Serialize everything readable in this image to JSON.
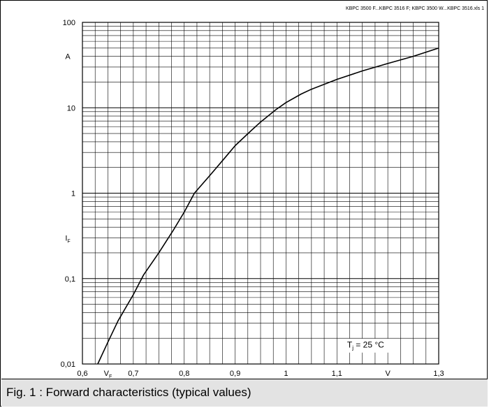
{
  "header_note": "KBPC 3500 F...KBPC 3516 F; KBPC 3500 W...KBPC 3516.xls 1",
  "caption": "Fig. 1 : Forward characteristics (typical values)",
  "chart_data": {
    "type": "line",
    "title": "",
    "xlabel": "",
    "ylabel": "",
    "x_scale": "linear",
    "y_scale": "log",
    "xlim": [
      0.6,
      1.3
    ],
    "ylim": [
      0.01,
      100
    ],
    "grid": true,
    "x_ticks": [
      {
        "value": 0.6,
        "label": "0,6"
      },
      {
        "value": 0.7,
        "label": "0,7"
      },
      {
        "value": 0.8,
        "label": "0,8"
      },
      {
        "value": 0.9,
        "label": "0,9"
      },
      {
        "value": 1.0,
        "label": "1"
      },
      {
        "value": 1.1,
        "label": "1,1"
      },
      {
        "value": 1.3,
        "label": "1,3"
      }
    ],
    "y_ticks": [
      {
        "value": 0.01,
        "label": "0,01"
      },
      {
        "value": 0.1,
        "label": "0,1"
      },
      {
        "value": 1,
        "label": "1"
      },
      {
        "value": 10,
        "label": "10"
      },
      {
        "value": 100,
        "label": "100"
      }
    ],
    "x_axis_symbol": {
      "main": "V",
      "sub": "F"
    },
    "x_axis_unit": "V",
    "y_axis_symbol": {
      "main": "I",
      "sub": "F"
    },
    "y_axis_unit": "A",
    "annotation": {
      "main": "T",
      "sub": "j",
      "rest": " = 25 °C"
    },
    "series": [
      {
        "color": "#000000",
        "points": [
          [
            0.63,
            0.01
          ],
          [
            0.65,
            0.018
          ],
          [
            0.67,
            0.032
          ],
          [
            0.7,
            0.065
          ],
          [
            0.72,
            0.11
          ],
          [
            0.75,
            0.2
          ],
          [
            0.78,
            0.38
          ],
          [
            0.8,
            0.6
          ],
          [
            0.82,
            1.0
          ],
          [
            0.85,
            1.6
          ],
          [
            0.88,
            2.6
          ],
          [
            0.9,
            3.6
          ],
          [
            0.93,
            5.3
          ],
          [
            0.95,
            6.8
          ],
          [
            0.98,
            9.5
          ],
          [
            1.0,
            11.5
          ],
          [
            1.03,
            14.5
          ],
          [
            1.05,
            16.5
          ],
          [
            1.1,
            21.5
          ],
          [
            1.15,
            27
          ],
          [
            1.2,
            33
          ],
          [
            1.25,
            40
          ],
          [
            1.3,
            50
          ]
        ]
      }
    ]
  }
}
